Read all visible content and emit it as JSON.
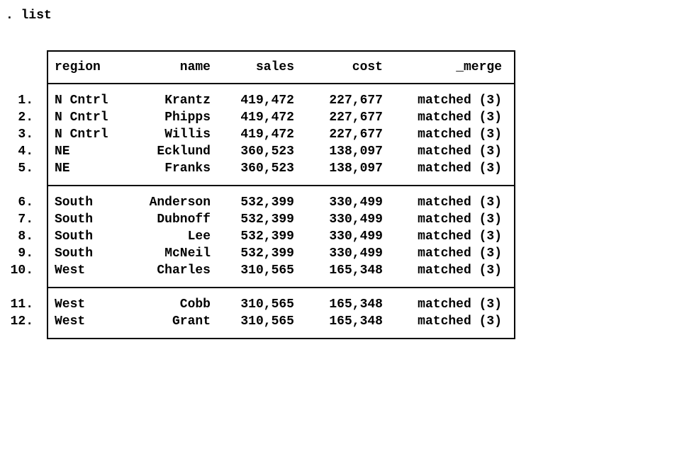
{
  "command": ". list",
  "colors": {
    "background": "#ffffff",
    "text": "#000000",
    "border": "#000000"
  },
  "table": {
    "columns": {
      "region": "region",
      "name": "name",
      "sales": "sales",
      "cost": "cost",
      "merge": "_merge"
    },
    "groups": [
      {
        "rows": [
          {
            "num": "1.",
            "region": "N Cntrl",
            "name": "Krantz",
            "sales": "419,472",
            "cost": "227,677",
            "merge": "matched (3)"
          },
          {
            "num": "2.",
            "region": "N Cntrl",
            "name": "Phipps",
            "sales": "419,472",
            "cost": "227,677",
            "merge": "matched (3)"
          },
          {
            "num": "3.",
            "region": "N Cntrl",
            "name": "Willis",
            "sales": "419,472",
            "cost": "227,677",
            "merge": "matched (3)"
          },
          {
            "num": "4.",
            "region": "NE",
            "name": "Ecklund",
            "sales": "360,523",
            "cost": "138,097",
            "merge": "matched (3)"
          },
          {
            "num": "5.",
            "region": "NE",
            "name": "Franks",
            "sales": "360,523",
            "cost": "138,097",
            "merge": "matched (3)"
          }
        ]
      },
      {
        "rows": [
          {
            "num": "6.",
            "region": "South",
            "name": "Anderson",
            "sales": "532,399",
            "cost": "330,499",
            "merge": "matched (3)"
          },
          {
            "num": "7.",
            "region": "South",
            "name": "Dubnoff",
            "sales": "532,399",
            "cost": "330,499",
            "merge": "matched (3)"
          },
          {
            "num": "8.",
            "region": "South",
            "name": "Lee",
            "sales": "532,399",
            "cost": "330,499",
            "merge": "matched (3)"
          },
          {
            "num": "9.",
            "region": "South",
            "name": "McNeil",
            "sales": "532,399",
            "cost": "330,499",
            "merge": "matched (3)"
          },
          {
            "num": "10.",
            "region": "West",
            "name": "Charles",
            "sales": "310,565",
            "cost": "165,348",
            "merge": "matched (3)"
          }
        ]
      },
      {
        "rows": [
          {
            "num": "11.",
            "region": "West",
            "name": "Cobb",
            "sales": "310,565",
            "cost": "165,348",
            "merge": "matched (3)"
          },
          {
            "num": "12.",
            "region": "West",
            "name": "Grant",
            "sales": "310,565",
            "cost": "165,348",
            "merge": "matched (3)"
          }
        ]
      }
    ]
  }
}
